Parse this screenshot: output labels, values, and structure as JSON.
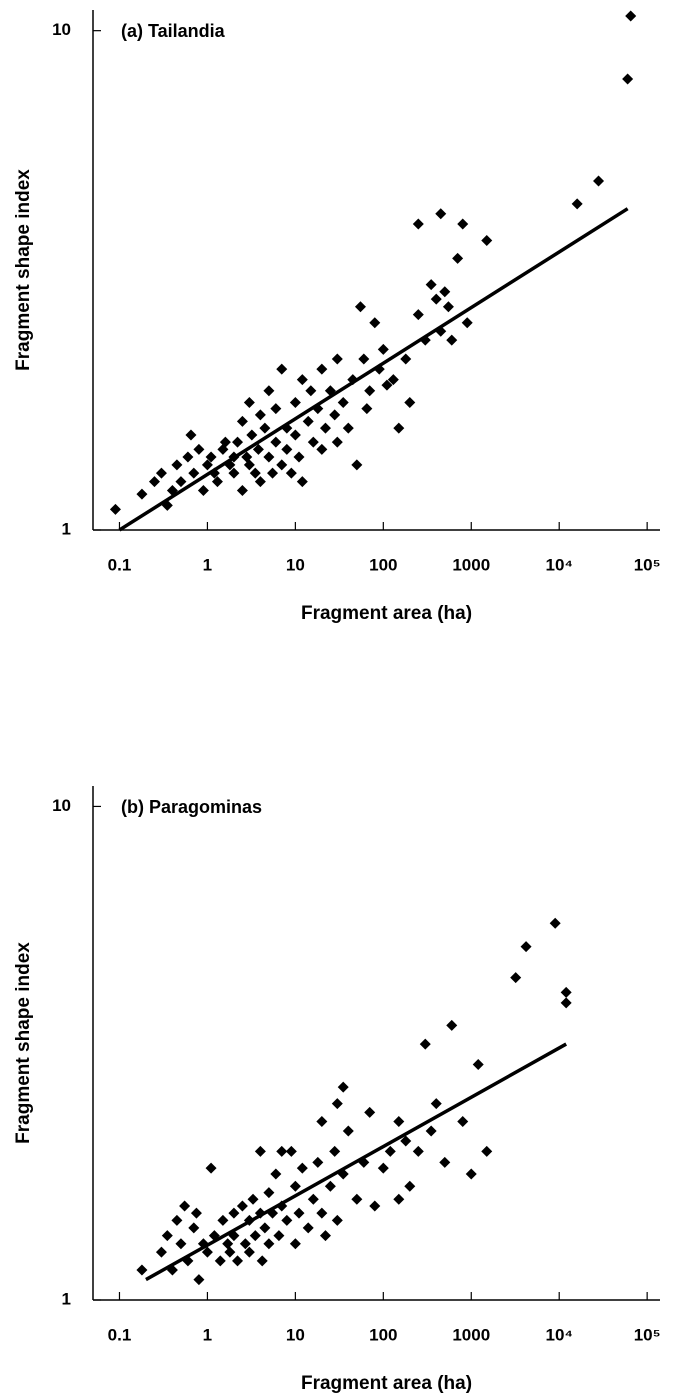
{
  "chart_data": [
    {
      "type": "scatter",
      "title": "(a) Tailandia",
      "x_label": "Fragment area (ha)",
      "y_label": "Fragment shape index",
      "log_x": true,
      "log_y": true,
      "color": "#000000",
      "xlim": [
        0.05,
        140000
      ],
      "ylim": [
        1,
        11
      ],
      "xticks": [
        0.1,
        1,
        10,
        100,
        1000,
        {
          "value": 10000,
          "label": "10⁴"
        },
        {
          "value": 100000,
          "label": "10⁵"
        }
      ],
      "yticks": [
        1,
        10
      ],
      "x": [
        0.09,
        0.18,
        0.25,
        0.3,
        0.35,
        0.4,
        0.45,
        0.5,
        0.6,
        0.65,
        0.7,
        0.8,
        0.9,
        1,
        1.1,
        1.2,
        1.3,
        1.5,
        1.6,
        1.8,
        2,
        2,
        2.2,
        2.5,
        2.5,
        2.8,
        3,
        3,
        3.2,
        3.5,
        3.8,
        4,
        4,
        4.5,
        5,
        5,
        5.5,
        6,
        6,
        7,
        7,
        8,
        8,
        9,
        10,
        10,
        11,
        12,
        12,
        14,
        15,
        16,
        18,
        20,
        20,
        22,
        25,
        28,
        30,
        30,
        35,
        40,
        45,
        50,
        55,
        60,
        65,
        70,
        80,
        90,
        100,
        110,
        130,
        150,
        180,
        200,
        250,
        250,
        300,
        350,
        400,
        450,
        450,
        500,
        550,
        600,
        700,
        800,
        900,
        1500,
        16000,
        28000,
        60000,
        65000
      ],
      "values": [
        1.1,
        1.18,
        1.25,
        1.3,
        1.12,
        1.2,
        1.35,
        1.25,
        1.4,
        1.55,
        1.3,
        1.45,
        1.2,
        1.35,
        1.4,
        1.3,
        1.25,
        1.45,
        1.5,
        1.35,
        1.4,
        1.3,
        1.5,
        1.2,
        1.65,
        1.4,
        1.35,
        1.8,
        1.55,
        1.3,
        1.45,
        1.7,
        1.25,
        1.6,
        1.4,
        1.9,
        1.3,
        1.5,
        1.75,
        2.1,
        1.35,
        1.6,
        1.45,
        1.3,
        1.8,
        1.55,
        1.4,
        2.0,
        1.25,
        1.65,
        1.9,
        1.5,
        1.75,
        2.1,
        1.45,
        1.6,
        1.9,
        1.7,
        2.2,
        1.5,
        1.8,
        1.6,
        2.0,
        1.35,
        2.8,
        2.2,
        1.75,
        1.9,
        2.6,
        2.1,
        2.3,
        1.95,
        2.0,
        1.6,
        2.2,
        1.8,
        2.7,
        4.1,
        2.4,
        3.1,
        2.9,
        4.3,
        2.5,
        3.0,
        2.8,
        2.4,
        3.5,
        4.1,
        2.6,
        3.8,
        4.5,
        5.0,
        8.0,
        10.7
      ],
      "fit": {
        "x": [
          0.1,
          60000
        ],
        "values": [
          1,
          4.4
        ]
      }
    },
    {
      "type": "scatter",
      "title": "(b) Paragominas",
      "x_label": "Fragment area (ha)",
      "y_label": "Fragment shape index",
      "log_x": true,
      "log_y": true,
      "color": "#000000",
      "xlim": [
        0.05,
        140000
      ],
      "ylim": [
        1,
        11
      ],
      "xticks": [
        0.1,
        1,
        10,
        100,
        1000,
        {
          "value": 10000,
          "label": "10⁴"
        },
        {
          "value": 100000,
          "label": "10⁵"
        }
      ],
      "yticks": [
        1,
        10
      ],
      "x": [
        0.18,
        0.3,
        0.35,
        0.4,
        0.45,
        0.5,
        0.55,
        0.6,
        0.7,
        0.75,
        0.8,
        0.9,
        1,
        1.1,
        1.2,
        1.4,
        1.5,
        1.7,
        1.8,
        2,
        2,
        2.2,
        2.5,
        2.7,
        3,
        3,
        3.3,
        3.5,
        4,
        4,
        4.2,
        4.5,
        5,
        5,
        5.5,
        6,
        6.5,
        7,
        7,
        8,
        9,
        10,
        10,
        11,
        12,
        14,
        16,
        18,
        20,
        20,
        22,
        25,
        28,
        30,
        30,
        35,
        35,
        40,
        50,
        60,
        70,
        80,
        100,
        120,
        150,
        150,
        180,
        200,
        250,
        300,
        350,
        400,
        500,
        600,
        800,
        1000,
        1200,
        1500,
        3200,
        4200,
        9000,
        12000,
        12000
      ],
      "values": [
        1.15,
        1.25,
        1.35,
        1.15,
        1.45,
        1.3,
        1.55,
        1.2,
        1.4,
        1.5,
        1.1,
        1.3,
        1.25,
        1.85,
        1.35,
        1.2,
        1.45,
        1.3,
        1.25,
        1.5,
        1.35,
        1.2,
        1.55,
        1.3,
        1.45,
        1.25,
        1.6,
        1.35,
        2.0,
        1.5,
        1.2,
        1.4,
        1.65,
        1.3,
        1.5,
        1.8,
        1.35,
        2.0,
        1.55,
        1.45,
        2.0,
        1.7,
        1.3,
        1.5,
        1.85,
        1.4,
        1.6,
        1.9,
        2.3,
        1.5,
        1.35,
        1.7,
        2.0,
        2.5,
        1.45,
        2.7,
        1.8,
        2.2,
        1.6,
        1.9,
        2.4,
        1.55,
        1.85,
        2.0,
        2.3,
        1.6,
        2.1,
        1.7,
        2.0,
        3.3,
        2.2,
        2.5,
        1.9,
        3.6,
        2.3,
        1.8,
        3.0,
        2.0,
        4.5,
        5.2,
        5.8,
        4.2,
        4.0
      ],
      "fit": {
        "x": [
          0.2,
          12000
        ],
        "values": [
          1.1,
          3.3
        ]
      }
    }
  ]
}
